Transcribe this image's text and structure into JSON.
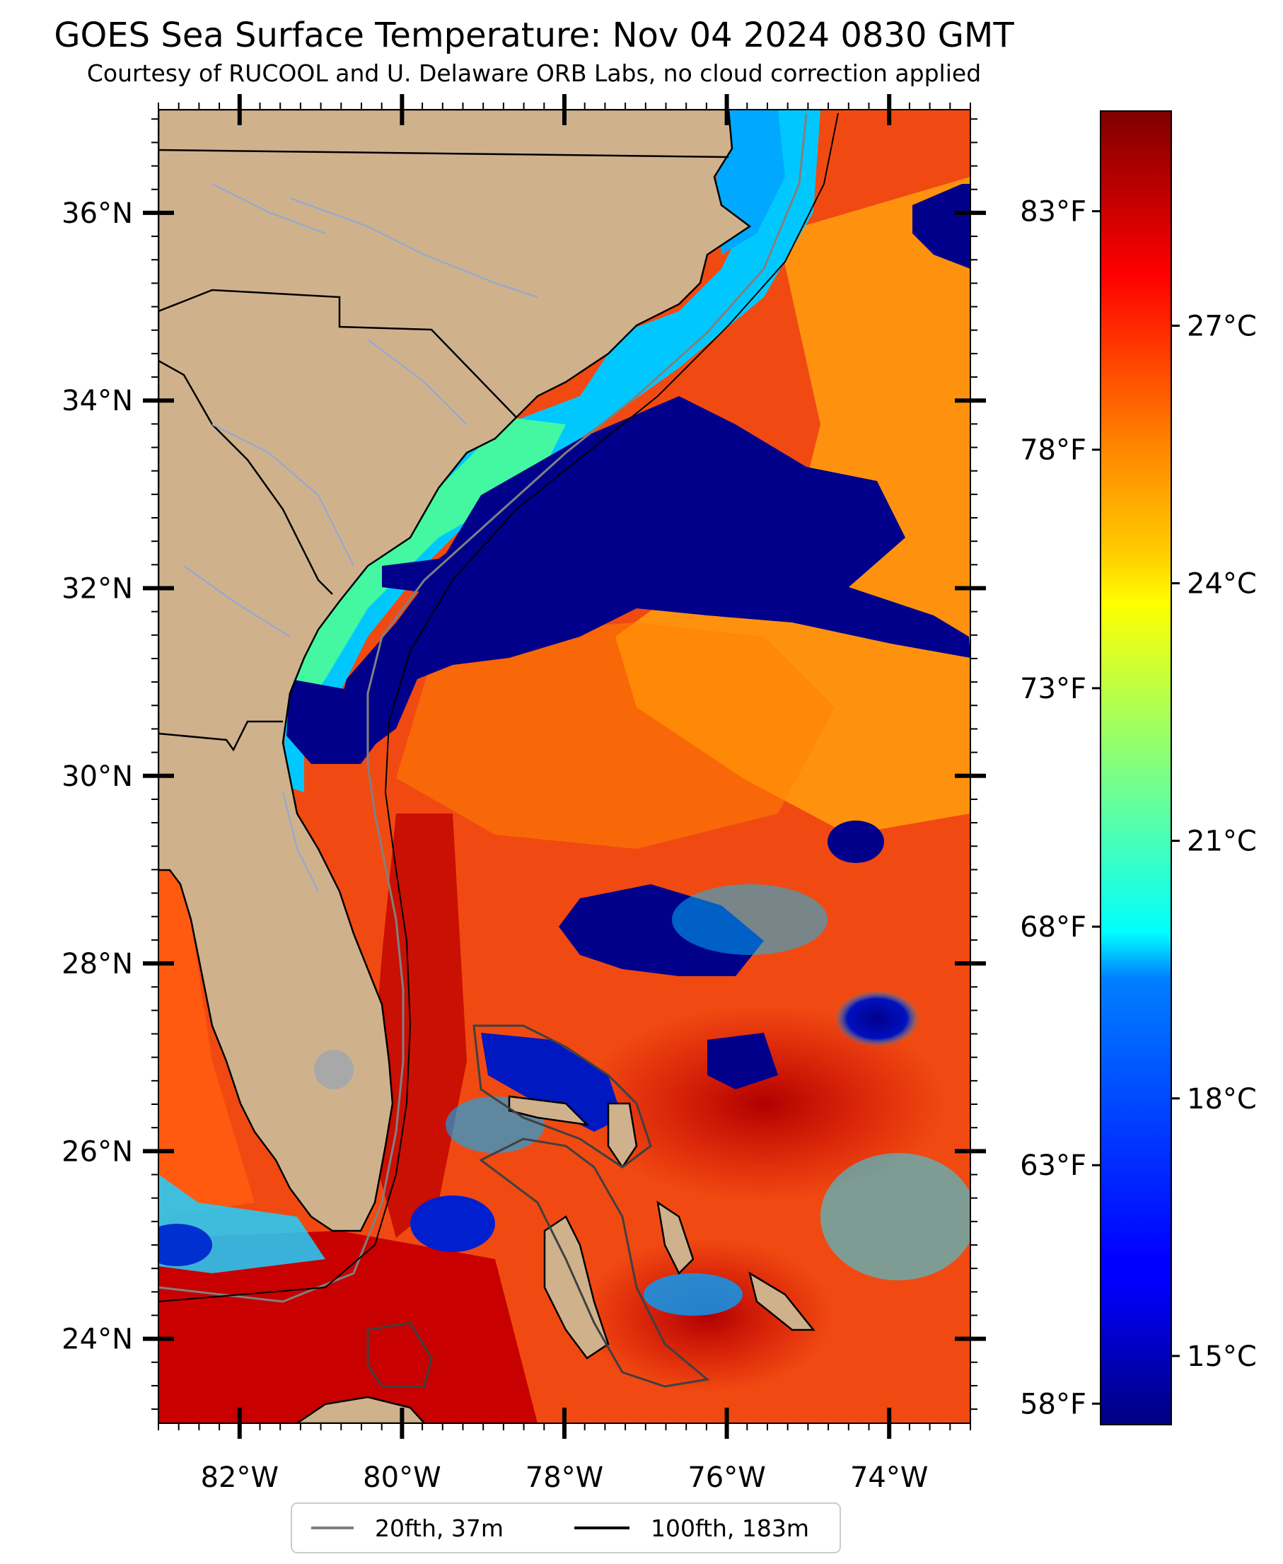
{
  "title": "GOES Sea Surface Temperature: Nov 04 2024 0830 GMT",
  "subtitle": "Courtesy of RUCOOL and U. Delaware ORB Labs, no cloud correction applied",
  "map": {
    "lon_range": [
      -83,
      -73
    ],
    "lat_range": [
      23.1,
      37.1
    ],
    "lat_ticks": [
      {
        "value": 36,
        "label": "36°N"
      },
      {
        "value": 34,
        "label": "34°N"
      },
      {
        "value": 32,
        "label": "32°N"
      },
      {
        "value": 30,
        "label": "30°N"
      },
      {
        "value": 28,
        "label": "28°N"
      },
      {
        "value": 26,
        "label": "26°N"
      },
      {
        "value": 24,
        "label": "24°N"
      }
    ],
    "lon_ticks": [
      {
        "value": -82,
        "label": "82°W"
      },
      {
        "value": -80,
        "label": "80°W"
      },
      {
        "value": -78,
        "label": "78°W"
      },
      {
        "value": -76,
        "label": "76°W"
      },
      {
        "value": -74,
        "label": "74°W"
      }
    ],
    "colors": {
      "land": "#cfb28c",
      "warm_water": "#f04a12",
      "cold_water": "#00008b",
      "coastline": "#000000",
      "rivers": "#8fa8d8",
      "isobath_20": "#808080",
      "isobath_100": "#000000"
    }
  },
  "colorbar": {
    "celsius_range": [
      14.2,
      29.5
    ],
    "celsius_ticks": [
      {
        "value": 27,
        "label": "27°C"
      },
      {
        "value": 24,
        "label": "24°C"
      },
      {
        "value": 21,
        "label": "21°C"
      },
      {
        "value": 18,
        "label": "18°C"
      },
      {
        "value": 15,
        "label": "15°C"
      }
    ],
    "fahrenheit_ticks": [
      {
        "value": 83,
        "label": "83°F"
      },
      {
        "value": 78,
        "label": "78°F"
      },
      {
        "value": 73,
        "label": "73°F"
      },
      {
        "value": 68,
        "label": "68°F"
      },
      {
        "value": 63,
        "label": "63°F"
      },
      {
        "value": 58,
        "label": "58°F"
      }
    ],
    "colormap": "jet"
  },
  "legend": {
    "items": [
      {
        "label": "20fth, 37m",
        "color": "#808080"
      },
      {
        "label": "100fth, 183m",
        "color": "#000000"
      }
    ]
  }
}
